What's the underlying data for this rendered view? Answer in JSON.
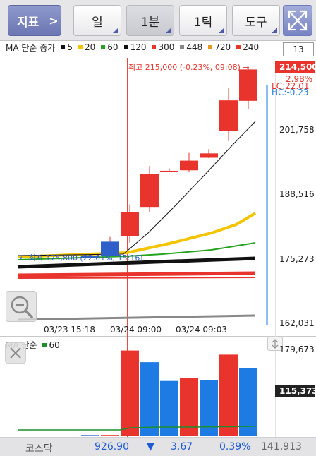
{
  "toolbar": {
    "indicator_label": "지표",
    "indicator_arrow": ">",
    "period_day": "일",
    "period_minute": "1분",
    "period_tick": "1틱",
    "tools": "도구"
  },
  "legend": {
    "title": "MA 단순 종가",
    "items": [
      {
        "value": "5",
        "color": "#111111"
      },
      {
        "value": "20",
        "color": "#f5c400"
      },
      {
        "value": "60",
        "color": "#25a51f"
      },
      {
        "value": "120",
        "color": "#111111"
      },
      {
        "value": "300",
        "color": "#e8342c"
      },
      {
        "value": "448",
        "color": "#888888"
      },
      {
        "value": "720",
        "color": "#e89a1e"
      },
      {
        "value": "240",
        "color": "#e8342c"
      }
    ],
    "count": "13"
  },
  "price_axis": {
    "current": "214,500",
    "change_pct": "2.98%",
    "lc": "LC:22.01",
    "hc": "HC:-0.23",
    "ticks": [
      "201,758",
      "188,516",
      "175,273",
      "162,031"
    ]
  },
  "annotations": {
    "high": "최고 215,000 (-0.23%, 09:08) →",
    "low": "← 최저 175,800 (22.01%, 15:16)"
  },
  "time_axis": [
    "03/23 15:18",
    "03/24 09:00",
    "03/24 09:03"
  ],
  "volume": {
    "title": "MA 단순",
    "ma": "60",
    "ticks": [
      "179,673",
      "115,373"
    ]
  },
  "status_bar": {
    "index_name": "코스닥",
    "index_value": "926.90",
    "direction": "▼",
    "change": "3.67",
    "change_pct": "0.39%",
    "volume": "141,913"
  },
  "chart_data": {
    "type": "candlestick",
    "x_labels": [
      "03/23 15:18",
      "03/24 09:00",
      "03/24 09:03"
    ],
    "ylim": [
      162031,
      215000
    ],
    "candles": [
      {
        "open": 175800,
        "high": 175800,
        "low": 175800,
        "close": 175800
      },
      {
        "open": 178800,
        "high": 179800,
        "low": 175800,
        "close": 175800
      },
      {
        "open": 185000,
        "high": 186500,
        "low": 178600,
        "close": 180000
      },
      {
        "open": 192800,
        "high": 194500,
        "low": 185000,
        "close": 186000
      },
      {
        "open": 193500,
        "high": 194000,
        "low": 193500,
        "close": 193500
      },
      {
        "open": 195600,
        "high": 197200,
        "low": 193300,
        "close": 193600
      },
      {
        "open": 197100,
        "high": 198000,
        "low": 196100,
        "close": 196200
      },
      {
        "open": 208100,
        "high": 210700,
        "low": 199700,
        "close": 201700
      },
      {
        "open": 214500,
        "high": 215000,
        "low": 206300,
        "close": 208000
      }
    ],
    "volumes": [
      1000,
      1200,
      179673,
      155000,
      115373,
      122000,
      117000,
      171000,
      143000
    ]
  }
}
